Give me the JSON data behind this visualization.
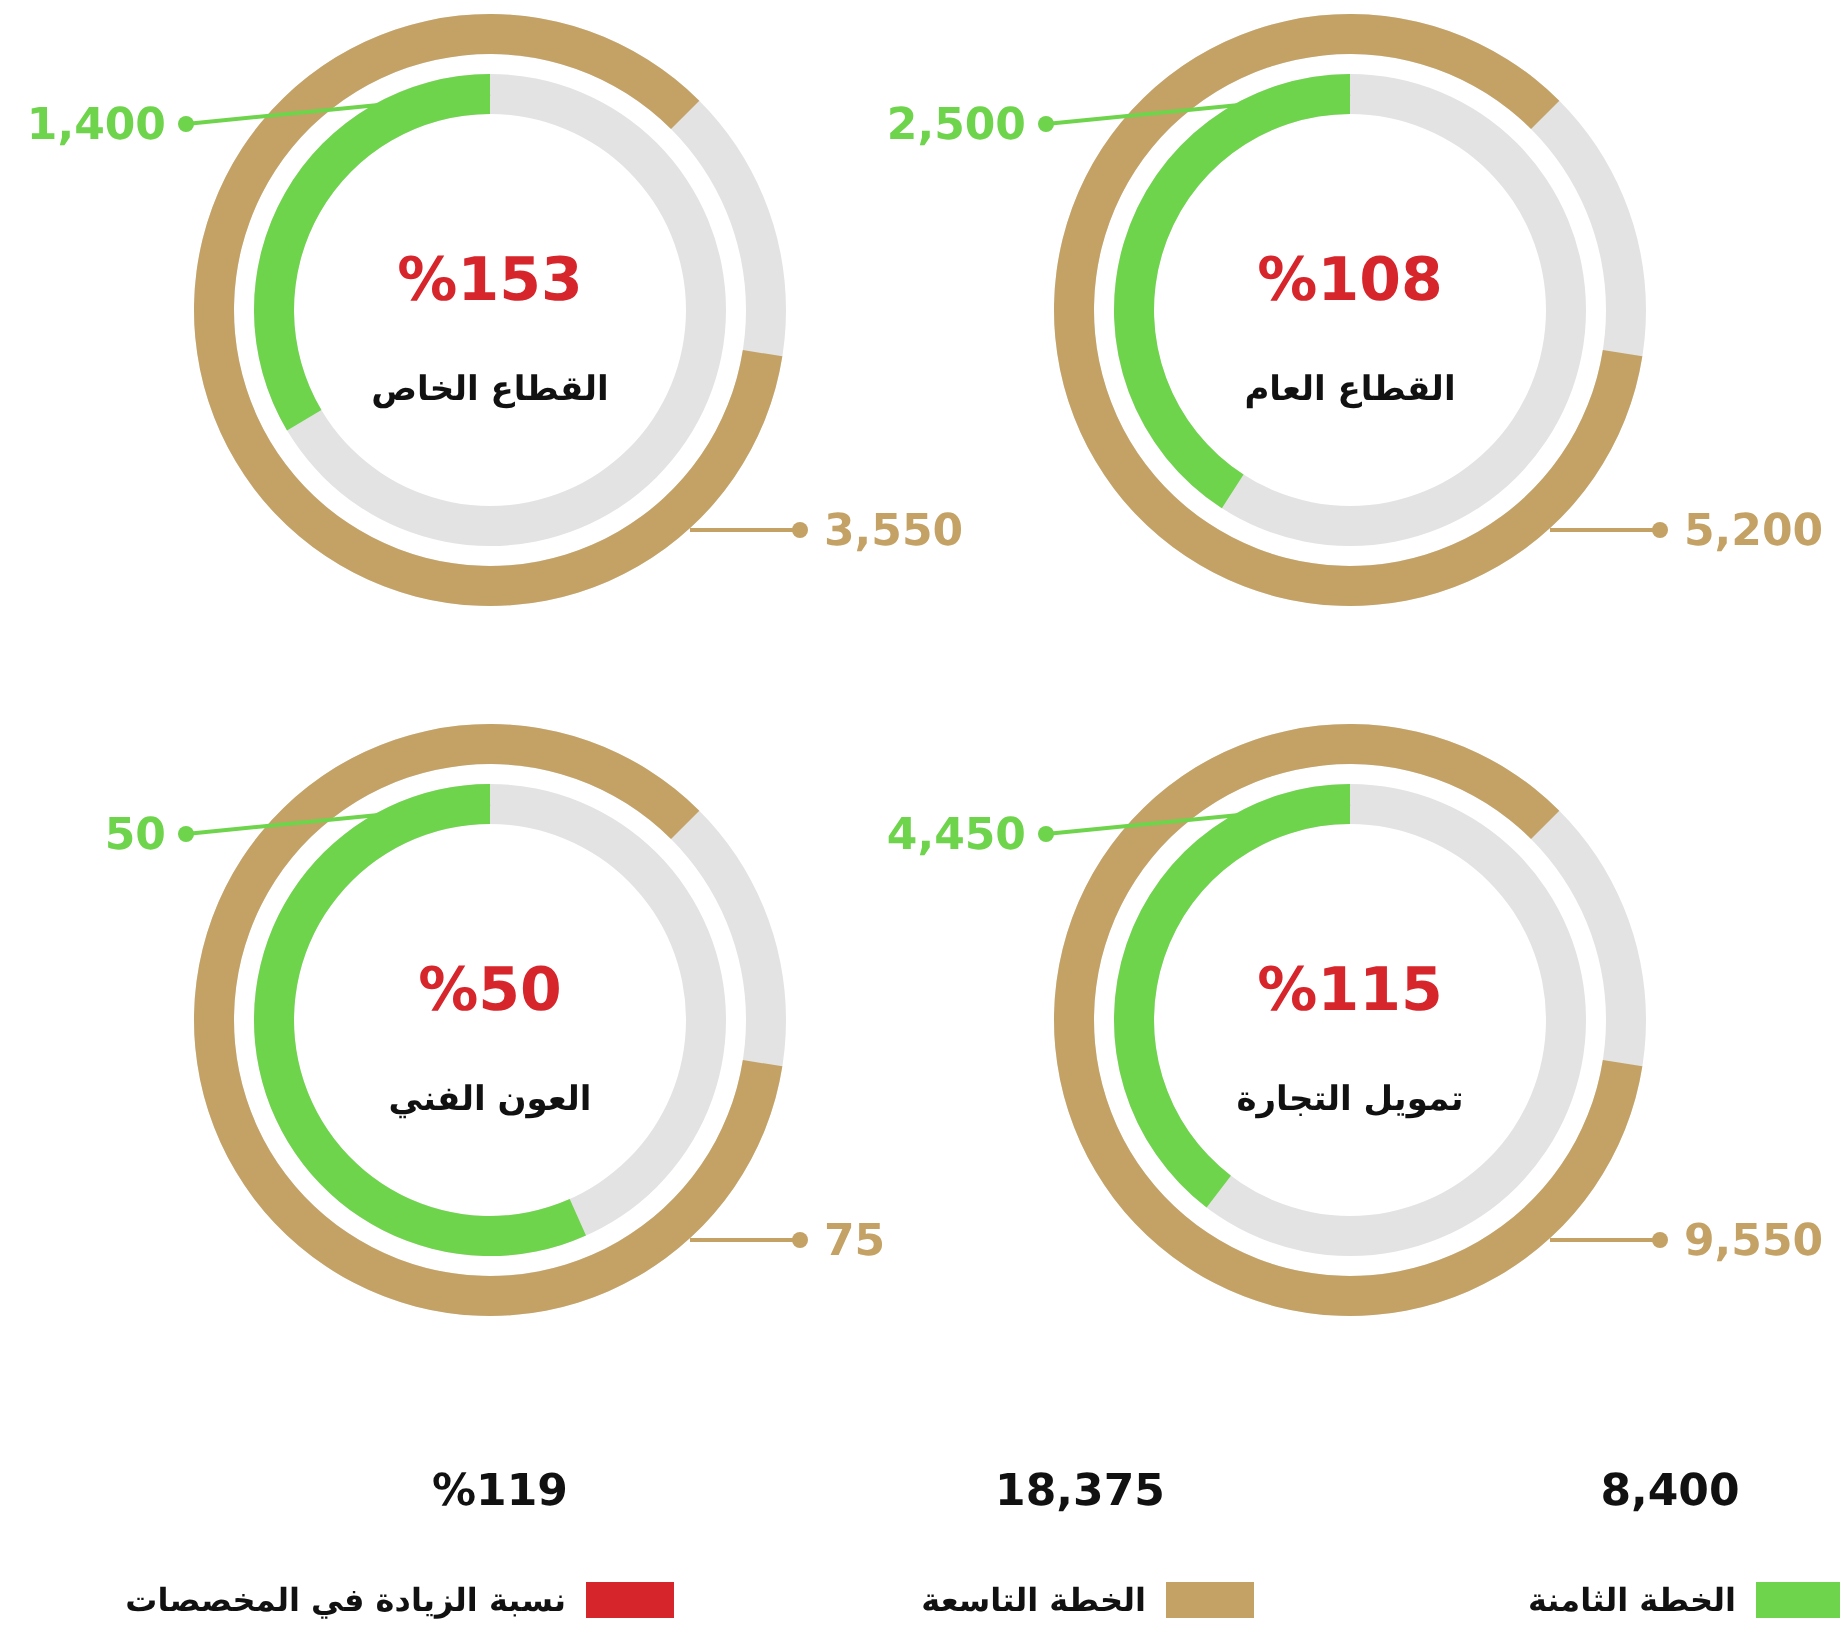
{
  "chart_data": [
    {
      "type": "other",
      "title": "القطاع العام",
      "values": [
        2500,
        5200
      ],
      "value_labels": [
        "2,500",
        "5,200"
      ],
      "colors": [
        "#6ed44c",
        "#c4a265"
      ],
      "annotations": [
        "%108"
      ]
    },
    {
      "type": "other",
      "title": "القطاع الخاص",
      "values": [
        1400,
        3550
      ],
      "value_labels": [
        "1,400",
        "3,550"
      ],
      "colors": [
        "#6ed44c",
        "#c4a265"
      ],
      "annotations": [
        "%153"
      ]
    },
    {
      "type": "other",
      "title": "تمويل التجارة",
      "values": [
        4450,
        9550
      ],
      "value_labels": [
        "4,450",
        "9,550"
      ],
      "colors": [
        "#6ed44c",
        "#c4a265"
      ],
      "annotations": [
        "%115"
      ]
    },
    {
      "type": "other",
      "title": "العون الفني",
      "values": [
        50,
        75
      ],
      "value_labels": [
        "50",
        "75"
      ],
      "colors": [
        "#6ed44c",
        "#c4a265"
      ],
      "annotations": [
        "%50"
      ]
    },
    {
      "type": "other",
      "categories": [
        "الخطة الثامنة",
        "الخطة التاسعة",
        "نسبة الزيادة في المخصصات"
      ],
      "values": [
        8400,
        18375,
        119
      ],
      "value_labels": [
        "8,400",
        "18,375",
        "%119"
      ],
      "colors": [
        "#6ed44c",
        "#c4a265",
        "#d6252b"
      ]
    }
  ]
}
